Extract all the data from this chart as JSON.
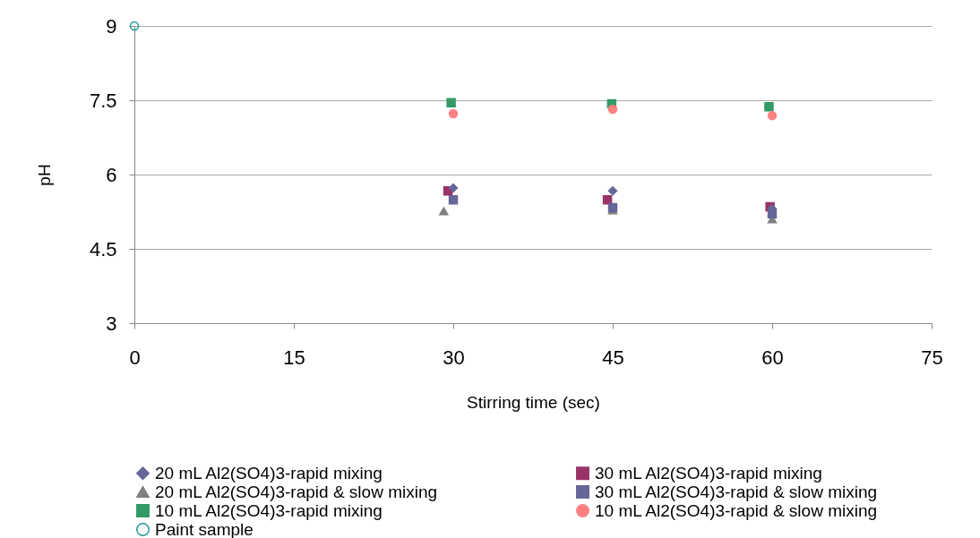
{
  "chart_data": {
    "type": "scatter",
    "xlabel": "Stirring time (sec)",
    "ylabel": "pH",
    "xlim": [
      0,
      75
    ],
    "xticks": [
      0,
      15,
      30,
      45,
      60,
      75
    ],
    "ylim": [
      3,
      9
    ],
    "yticks": [
      3,
      4.5,
      6,
      7.5,
      9
    ],
    "grid": "y",
    "legend": "bottom",
    "series": [
      {
        "name": "20 mL Al2(SO4)3-rapid mixing",
        "color": "#666699",
        "marker": "diamond",
        "x": [
          30,
          45,
          60
        ],
        "values": [
          5.73,
          5.67,
          5.31
        ]
      },
      {
        "name": "30 mL Al2(SO4)3-rapid mixing",
        "color": "#993366",
        "marker": "square",
        "x": [
          29.5,
          44.5,
          59.8
        ],
        "values": [
          5.67,
          5.49,
          5.35
        ]
      },
      {
        "name": "20 mL Al2(SO4)3-rapid & slow mixing",
        "color": "#808080",
        "marker": "triangle",
        "x": [
          29.1,
          45,
          60
        ],
        "values": [
          5.26,
          5.28,
          5.1
        ]
      },
      {
        "name": "30 mL Al2(SO4)3-rapid & slow mixing",
        "color": "#666699",
        "marker": "square",
        "x": [
          30,
          45,
          60
        ],
        "values": [
          5.49,
          5.33,
          5.21
        ]
      },
      {
        "name": "10 mL Al2(SO4)3-rapid mixing",
        "color": "#339966",
        "marker": "square",
        "x": [
          29.8,
          44.9,
          59.7
        ],
        "values": [
          7.45,
          7.43,
          7.37
        ]
      },
      {
        "name": "10 mL Al2(SO4)3-rapid & slow mixing",
        "color": "#ff8080",
        "marker": "circle",
        "x": [
          30,
          45,
          60
        ],
        "values": [
          7.23,
          7.32,
          7.19
        ]
      },
      {
        "name": "Paint sample",
        "type": "line",
        "color": "#1f9a9a",
        "marker": "circle",
        "x": [
          0
        ],
        "values": [
          9
        ]
      }
    ]
  }
}
